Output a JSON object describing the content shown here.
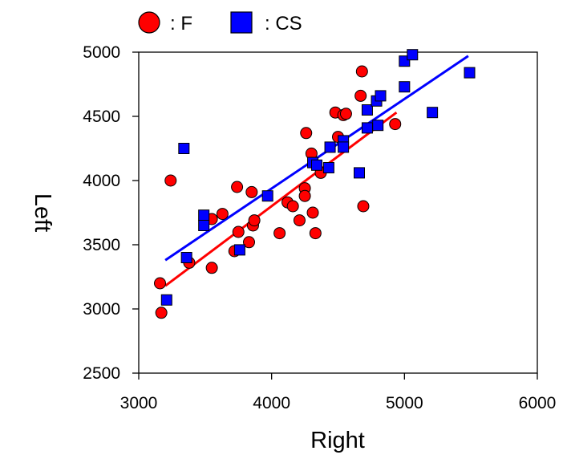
{
  "chart_data": {
    "type": "scatter",
    "xlabel": "Right",
    "ylabel": "Left",
    "xlim": [
      3000,
      6000
    ],
    "ylim": [
      2500,
      5000
    ],
    "xticks": [
      3000,
      4000,
      5000,
      6000
    ],
    "yticks": [
      2500,
      3000,
      3500,
      4000,
      4500,
      5000
    ],
    "grid": false,
    "legend_position": "top-left",
    "series": [
      {
        "name": ": F",
        "marker": "circle",
        "color": "#ff0000",
        "points": [
          [
            3160,
            3200
          ],
          [
            3170,
            2970
          ],
          [
            3240,
            4000
          ],
          [
            3380,
            3360
          ],
          [
            3550,
            3320
          ],
          [
            3550,
            3700
          ],
          [
            3630,
            3740
          ],
          [
            3720,
            3450
          ],
          [
            3740,
            3950
          ],
          [
            3750,
            3600
          ],
          [
            3830,
            3520
          ],
          [
            3850,
            3910
          ],
          [
            3860,
            3650
          ],
          [
            3870,
            3690
          ],
          [
            4060,
            3590
          ],
          [
            4120,
            3830
          ],
          [
            4160,
            3800
          ],
          [
            4210,
            3690
          ],
          [
            4250,
            3940
          ],
          [
            4250,
            3880
          ],
          [
            4260,
            4370
          ],
          [
            4300,
            4210
          ],
          [
            4310,
            3750
          ],
          [
            4330,
            3590
          ],
          [
            4370,
            4060
          ],
          [
            4480,
            4530
          ],
          [
            4500,
            4340
          ],
          [
            4540,
            4510
          ],
          [
            4560,
            4520
          ],
          [
            4670,
            4660
          ],
          [
            4680,
            4850
          ],
          [
            4690,
            3800
          ],
          [
            4930,
            4440
          ]
        ],
        "fit": {
          "x": [
            3200,
            4940
          ],
          "y": [
            3180,
            4530
          ],
          "color": "#ff0000"
        }
      },
      {
        "name": ": CS",
        "marker": "square",
        "color": "#0000ff",
        "points": [
          [
            3210,
            3070
          ],
          [
            3340,
            4250
          ],
          [
            3360,
            3400
          ],
          [
            3490,
            3730
          ],
          [
            3490,
            3650
          ],
          [
            3760,
            3460
          ],
          [
            3970,
            3880
          ],
          [
            4310,
            4140
          ],
          [
            4340,
            4120
          ],
          [
            4430,
            4100
          ],
          [
            4440,
            4260
          ],
          [
            4540,
            4310
          ],
          [
            4540,
            4260
          ],
          [
            4660,
            4060
          ],
          [
            4720,
            4410
          ],
          [
            4720,
            4550
          ],
          [
            4790,
            4620
          ],
          [
            4800,
            4430
          ],
          [
            4820,
            4660
          ],
          [
            5000,
            4730
          ],
          [
            5000,
            4930
          ],
          [
            5060,
            4980
          ],
          [
            5210,
            4530
          ],
          [
            5490,
            4840
          ]
        ],
        "fit": {
          "x": [
            3200,
            5480
          ],
          "y": [
            3380,
            4970
          ],
          "color": "#0000ff"
        }
      }
    ]
  }
}
